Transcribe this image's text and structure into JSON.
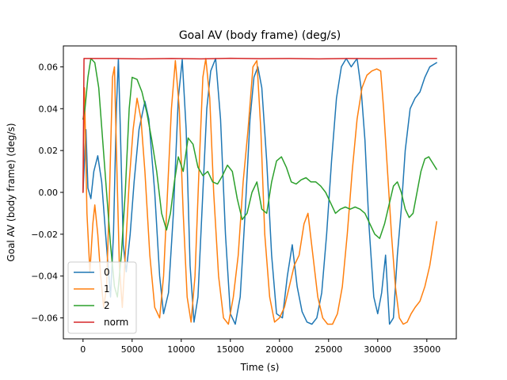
{
  "chart_data": {
    "type": "line",
    "title": "Goal AV (body frame) (deg/s)",
    "xlabel": "Time (s)",
    "ylabel": "Goal AV (body frame) (deg/s)",
    "xlim": [
      -2000,
      38000
    ],
    "ylim": [
      -0.07,
      0.07
    ],
    "xticks": [
      0,
      5000,
      10000,
      15000,
      20000,
      25000,
      30000,
      35000
    ],
    "yticks": [
      -0.06,
      -0.04,
      -0.02,
      0.0,
      0.02,
      0.04,
      0.06
    ],
    "xtick_labels": [
      "0",
      "5000",
      "10000",
      "15000",
      "20000",
      "25000",
      "30000",
      "35000"
    ],
    "ytick_labels": [
      "−0.06",
      "−0.04",
      "−0.02",
      "0.00",
      "0.02",
      "0.04",
      "0.06"
    ],
    "grid": false,
    "legend_position": "lower-left",
    "series": [
      {
        "name": "0",
        "color": "#1f77b4",
        "points": [
          [
            0,
            0
          ],
          [
            300,
            0.03
          ],
          [
            500,
            0.002
          ],
          [
            800,
            -0.003
          ],
          [
            1100,
            0.01
          ],
          [
            1500,
            0.0175
          ],
          [
            1900,
            0.005
          ],
          [
            2300,
            -0.02
          ],
          [
            2800,
            -0.05
          ],
          [
            3100,
            -0.02
          ],
          [
            3400,
            0.04
          ],
          [
            3600,
            0.064
          ],
          [
            3800,
            0.03
          ],
          [
            4100,
            -0.025
          ],
          [
            4400,
            -0.038
          ],
          [
            4800,
            -0.02
          ],
          [
            5200,
            0.005
          ],
          [
            5700,
            0.03
          ],
          [
            6300,
            0.0435
          ],
          [
            6700,
            0.035
          ],
          [
            7300,
            0.0
          ],
          [
            7800,
            -0.04
          ],
          [
            8200,
            -0.058
          ],
          [
            8700,
            -0.048
          ],
          [
            9200,
            -0.01
          ],
          [
            9700,
            0.045
          ],
          [
            10100,
            0.0635
          ],
          [
            10500,
            0.03
          ],
          [
            10900,
            -0.035
          ],
          [
            11300,
            -0.062
          ],
          [
            11700,
            -0.05
          ],
          [
            12100,
            -0.01
          ],
          [
            12600,
            0.04
          ],
          [
            13000,
            0.058
          ],
          [
            13500,
            0.064
          ],
          [
            14000,
            0.035
          ],
          [
            14500,
            -0.02
          ],
          [
            15000,
            -0.058
          ],
          [
            15500,
            -0.063
          ],
          [
            16000,
            -0.05
          ],
          [
            16500,
            -0.01
          ],
          [
            17000,
            0.035
          ],
          [
            17400,
            0.055
          ],
          [
            17800,
            0.06
          ],
          [
            18200,
            0.05
          ],
          [
            18700,
            0.015
          ],
          [
            19200,
            -0.03
          ],
          [
            19700,
            -0.058
          ],
          [
            20300,
            -0.06
          ],
          [
            20800,
            -0.04
          ],
          [
            21300,
            -0.025
          ],
          [
            21800,
            -0.045
          ],
          [
            22300,
            -0.057
          ],
          [
            22800,
            -0.062
          ],
          [
            23300,
            -0.063
          ],
          [
            23800,
            -0.06
          ],
          [
            24300,
            -0.048
          ],
          [
            24800,
            -0.02
          ],
          [
            25300,
            0.015
          ],
          [
            25800,
            0.045
          ],
          [
            26300,
            0.06
          ],
          [
            26800,
            0.064
          ],
          [
            27300,
            0.06
          ],
          [
            27900,
            0.064
          ],
          [
            28300,
            0.05
          ],
          [
            28700,
            0.025
          ],
          [
            29100,
            -0.015
          ],
          [
            29600,
            -0.05
          ],
          [
            30000,
            -0.058
          ],
          [
            30400,
            -0.048
          ],
          [
            30800,
            -0.03
          ],
          [
            31200,
            -0.063
          ],
          [
            31600,
            -0.06
          ],
          [
            32000,
            -0.03
          ],
          [
            32400,
            -0.008
          ],
          [
            32800,
            0.02
          ],
          [
            33300,
            0.04
          ],
          [
            33800,
            0.045
          ],
          [
            34300,
            0.048
          ],
          [
            34800,
            0.055
          ],
          [
            35300,
            0.06
          ],
          [
            36000,
            0.062
          ]
        ]
      },
      {
        "name": "1",
        "color": "#ff7f0e",
        "points": [
          [
            0,
            0
          ],
          [
            150,
            0.05
          ],
          [
            400,
            -0.01
          ],
          [
            700,
            -0.038
          ],
          [
            1000,
            -0.015
          ],
          [
            1200,
            -0.006
          ],
          [
            1500,
            -0.02
          ],
          [
            1800,
            -0.04
          ],
          [
            2100,
            -0.055
          ],
          [
            2400,
            -0.045
          ],
          [
            2700,
            0.0
          ],
          [
            3000,
            0.055
          ],
          [
            3200,
            0.06
          ],
          [
            3400,
            0.02
          ],
          [
            3700,
            -0.035
          ],
          [
            4000,
            -0.055
          ],
          [
            4300,
            -0.03
          ],
          [
            4700,
            0.005
          ],
          [
            5100,
            0.03
          ],
          [
            5500,
            0.045
          ],
          [
            5900,
            0.035
          ],
          [
            6300,
            0.01
          ],
          [
            6800,
            -0.03
          ],
          [
            7300,
            -0.055
          ],
          [
            7800,
            -0.06
          ],
          [
            8200,
            -0.04
          ],
          [
            8600,
            0.0
          ],
          [
            9000,
            0.04
          ],
          [
            9400,
            0.063
          ],
          [
            9800,
            0.04
          ],
          [
            10200,
            -0.01
          ],
          [
            10600,
            -0.05
          ],
          [
            11000,
            -0.062
          ],
          [
            11400,
            -0.04
          ],
          [
            11800,
            0.01
          ],
          [
            12200,
            0.055
          ],
          [
            12500,
            0.064
          ],
          [
            12900,
            0.045
          ],
          [
            13300,
            0.0
          ],
          [
            13800,
            -0.04
          ],
          [
            14300,
            -0.06
          ],
          [
            14800,
            -0.063
          ],
          [
            15300,
            -0.05
          ],
          [
            15800,
            -0.03
          ],
          [
            16300,
            0.005
          ],
          [
            16800,
            0.03
          ],
          [
            17300,
            0.06
          ],
          [
            17700,
            0.063
          ],
          [
            18100,
            0.03
          ],
          [
            18500,
            -0.02
          ],
          [
            19000,
            -0.05
          ],
          [
            19500,
            -0.062
          ],
          [
            20000,
            -0.06
          ],
          [
            20500,
            -0.055
          ],
          [
            21000,
            -0.045
          ],
          [
            21500,
            -0.035
          ],
          [
            22000,
            -0.03
          ],
          [
            22500,
            -0.015
          ],
          [
            22900,
            -0.01
          ],
          [
            23400,
            -0.03
          ],
          [
            23900,
            -0.05
          ],
          [
            24400,
            -0.06
          ],
          [
            24900,
            -0.063
          ],
          [
            25400,
            -0.063
          ],
          [
            25900,
            -0.058
          ],
          [
            26400,
            -0.045
          ],
          [
            26900,
            -0.02
          ],
          [
            27400,
            0.01
          ],
          [
            27900,
            0.035
          ],
          [
            28400,
            0.05
          ],
          [
            28900,
            0.056
          ],
          [
            29400,
            0.058
          ],
          [
            29900,
            0.059
          ],
          [
            30300,
            0.058
          ],
          [
            30600,
            0.04
          ],
          [
            31000,
            0.01
          ],
          [
            31400,
            -0.02
          ],
          [
            31800,
            -0.045
          ],
          [
            32200,
            -0.06
          ],
          [
            32600,
            -0.063
          ],
          [
            33000,
            -0.062
          ],
          [
            33400,
            -0.058
          ],
          [
            33800,
            -0.055
          ],
          [
            34300,
            -0.052
          ],
          [
            34800,
            -0.045
          ],
          [
            35300,
            -0.035
          ],
          [
            35800,
            -0.02
          ],
          [
            36000,
            -0.014
          ]
        ]
      },
      {
        "name": "2",
        "color": "#2ca02c",
        "points": [
          [
            0,
            0.035
          ],
          [
            200,
            0.04
          ],
          [
            500,
            0.055
          ],
          [
            800,
            0.064
          ],
          [
            1200,
            0.062
          ],
          [
            1600,
            0.05
          ],
          [
            2000,
            0.025
          ],
          [
            2400,
            0.0
          ],
          [
            2800,
            -0.025
          ],
          [
            3200,
            -0.045
          ],
          [
            3500,
            -0.05
          ],
          [
            3900,
            -0.03
          ],
          [
            4300,
            0.0
          ],
          [
            4700,
            0.04
          ],
          [
            5000,
            0.055
          ],
          [
            5500,
            0.054
          ],
          [
            6000,
            0.048
          ],
          [
            6500,
            0.038
          ],
          [
            7000,
            0.025
          ],
          [
            7500,
            0.01
          ],
          [
            8000,
            -0.01
          ],
          [
            8500,
            -0.018
          ],
          [
            8900,
            -0.01
          ],
          [
            9300,
            0.005
          ],
          [
            9700,
            0.017
          ],
          [
            10200,
            0.01
          ],
          [
            10700,
            0.026
          ],
          [
            11200,
            0.023
          ],
          [
            11700,
            0.012
          ],
          [
            12200,
            0.008
          ],
          [
            12700,
            0.01
          ],
          [
            13200,
            0.005
          ],
          [
            13700,
            0.004
          ],
          [
            14200,
            0.008
          ],
          [
            14700,
            0.013
          ],
          [
            15200,
            0.01
          ],
          [
            15700,
            -0.003
          ],
          [
            16200,
            -0.013
          ],
          [
            16700,
            -0.01
          ],
          [
            17200,
            0.0
          ],
          [
            17700,
            0.005
          ],
          [
            18200,
            -0.008
          ],
          [
            18700,
            -0.01
          ],
          [
            19200,
            0.005
          ],
          [
            19700,
            0.015
          ],
          [
            20200,
            0.017
          ],
          [
            20700,
            0.012
          ],
          [
            21200,
            0.005
          ],
          [
            21700,
            0.004
          ],
          [
            22200,
            0.006
          ],
          [
            22700,
            0.007
          ],
          [
            23200,
            0.005
          ],
          [
            23700,
            0.005
          ],
          [
            24200,
            0.003
          ],
          [
            24700,
            0.0
          ],
          [
            25200,
            -0.005
          ],
          [
            25700,
            -0.01
          ],
          [
            26200,
            -0.008
          ],
          [
            26700,
            -0.007
          ],
          [
            27200,
            -0.008
          ],
          [
            27700,
            -0.007
          ],
          [
            28200,
            -0.008
          ],
          [
            28700,
            -0.01
          ],
          [
            29200,
            -0.015
          ],
          [
            29700,
            -0.02
          ],
          [
            30200,
            -0.022
          ],
          [
            30700,
            -0.015
          ],
          [
            31200,
            -0.005
          ],
          [
            31600,
            0.003
          ],
          [
            32000,
            0.005
          ],
          [
            32400,
            0.0
          ],
          [
            32800,
            -0.008
          ],
          [
            33200,
            -0.012
          ],
          [
            33600,
            -0.01
          ],
          [
            34000,
            0.0
          ],
          [
            34400,
            0.01
          ],
          [
            34800,
            0.016
          ],
          [
            35200,
            0.017
          ],
          [
            35600,
            0.014
          ],
          [
            36000,
            0.011
          ]
        ]
      },
      {
        "name": "norm",
        "color": "#d62728",
        "points": [
          [
            0,
            0
          ],
          [
            100,
            0.064
          ],
          [
            3000,
            0.064
          ],
          [
            6000,
            0.0638
          ],
          [
            9000,
            0.064
          ],
          [
            12000,
            0.0638
          ],
          [
            15000,
            0.0641
          ],
          [
            18000,
            0.0639
          ],
          [
            21000,
            0.064
          ],
          [
            24000,
            0.0638
          ],
          [
            27000,
            0.064
          ],
          [
            30000,
            0.0639
          ],
          [
            33000,
            0.064
          ],
          [
            36000,
            0.064
          ]
        ]
      }
    ]
  }
}
